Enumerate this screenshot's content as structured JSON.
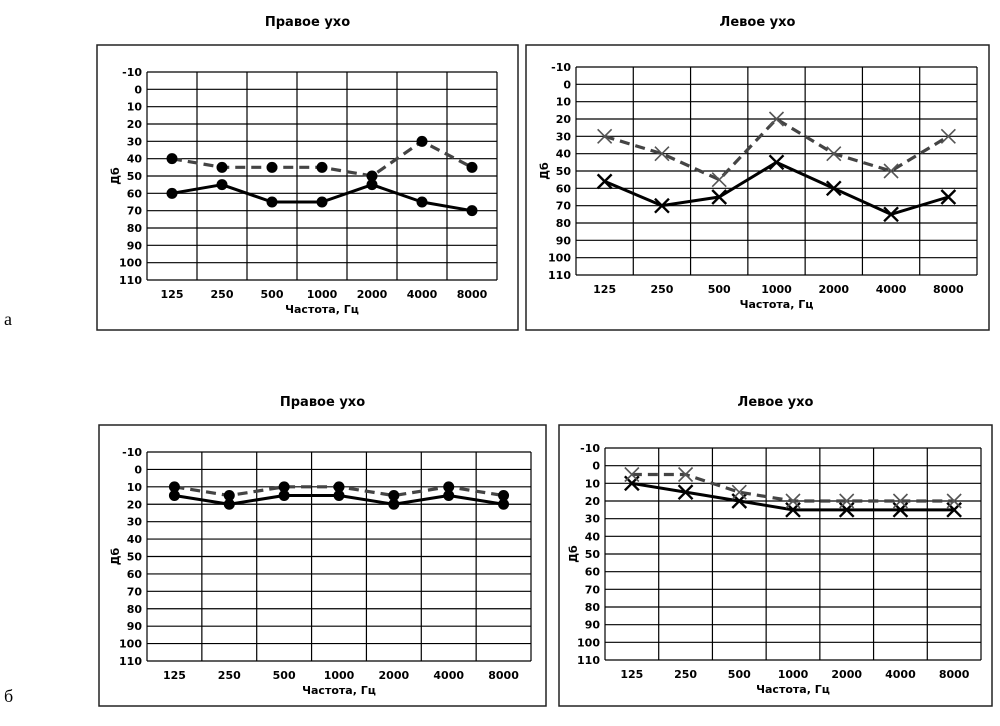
{
  "panel_letters": [
    "а",
    "б"
  ],
  "chart_data": [
    {
      "type": "line",
      "panel": "а",
      "title": "Правое ухо",
      "xlabel": "Частота, Гц",
      "ylabel": "Дб",
      "categories": [
        "125",
        "250",
        "500",
        "1000",
        "2000",
        "4000",
        "8000"
      ],
      "y_ticks": [
        "-10",
        "0",
        "10",
        "20",
        "30",
        "40",
        "50",
        "60",
        "70",
        "80",
        "90",
        "100",
        "110"
      ],
      "ylim": [
        -10,
        110
      ],
      "y_inverted": true,
      "grid": true,
      "series": [
        {
          "style": "solid",
          "marker": "circle",
          "values": [
            60,
            55,
            65,
            65,
            55,
            65,
            70
          ]
        },
        {
          "style": "dashed",
          "marker": "circle",
          "values": [
            40,
            45,
            45,
            45,
            50,
            30,
            45
          ]
        }
      ]
    },
    {
      "type": "line",
      "panel": "а",
      "title": "Левое ухо",
      "xlabel": "Частота, Гц",
      "ylabel": "Дб",
      "categories": [
        "125",
        "250",
        "500",
        "1000",
        "2000",
        "4000",
        "8000"
      ],
      "y_ticks": [
        "-10",
        "0",
        "10",
        "20",
        "30",
        "40",
        "50",
        "60",
        "70",
        "80",
        "90",
        "100",
        "110"
      ],
      "ylim": [
        -10,
        110
      ],
      "y_inverted": true,
      "grid": true,
      "series": [
        {
          "style": "solid",
          "marker": "x",
          "values": [
            56,
            70,
            65,
            45,
            60,
            75,
            65
          ]
        },
        {
          "style": "dashed",
          "marker": "x",
          "values": [
            30,
            40,
            55,
            20,
            40,
            50,
            30
          ]
        }
      ]
    },
    {
      "type": "line",
      "panel": "б",
      "title": "Правое ухо",
      "xlabel": "Частота, Гц",
      "ylabel": "Дб",
      "categories": [
        "125",
        "250",
        "500",
        "1000",
        "2000",
        "4000",
        "8000"
      ],
      "y_ticks": [
        "-10",
        "0",
        "10",
        "20",
        "30",
        "40",
        "50",
        "60",
        "70",
        "80",
        "90",
        "100",
        "110"
      ],
      "ylim": [
        -10,
        110
      ],
      "y_inverted": true,
      "grid": true,
      "series": [
        {
          "style": "solid",
          "marker": "circle",
          "values": [
            15,
            20,
            15,
            15,
            20,
            15,
            20
          ]
        },
        {
          "style": "dashed",
          "marker": "circle",
          "values": [
            10,
            15,
            10,
            10,
            15,
            10,
            15
          ]
        }
      ]
    },
    {
      "type": "line",
      "panel": "б",
      "title": "Левое ухо",
      "xlabel": "Частота, Гц",
      "ylabel": "Дб",
      "categories": [
        "125",
        "250",
        "500",
        "1000",
        "2000",
        "4000",
        "8000"
      ],
      "y_ticks": [
        "-10",
        "0",
        "10",
        "20",
        "30",
        "40",
        "50",
        "60",
        "70",
        "80",
        "90",
        "100",
        "110"
      ],
      "ylim": [
        -10,
        110
      ],
      "y_inverted": true,
      "grid": true,
      "series": [
        {
          "style": "solid",
          "marker": "x",
          "values": [
            10,
            15,
            20,
            25,
            25,
            25,
            25
          ]
        },
        {
          "style": "dashed",
          "marker": "x",
          "values": [
            5,
            5,
            15,
            20,
            20,
            20,
            20
          ]
        }
      ]
    }
  ]
}
